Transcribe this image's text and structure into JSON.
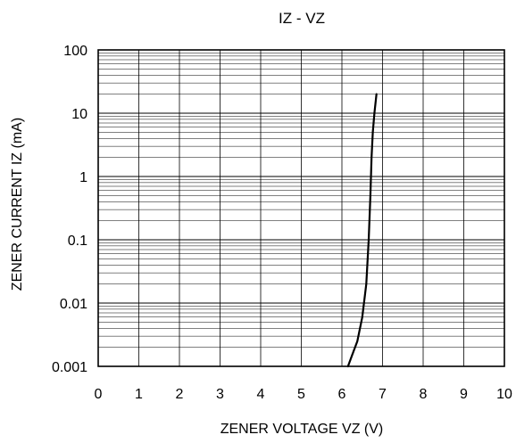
{
  "chart_data": {
    "type": "line",
    "title": "IZ - VZ",
    "xlabel": "ZENER VOLTAGE VZ (V)",
    "ylabel": "ZENER CURRENT  IZ (mA)",
    "x_scale": "linear",
    "y_scale": "log",
    "xlim": [
      0,
      10
    ],
    "ylim": [
      0.001,
      100
    ],
    "grid": true,
    "x_ticks": [
      "0",
      "1",
      "2",
      "3",
      "4",
      "5",
      "6",
      "7",
      "8",
      "9",
      "10"
    ],
    "y_ticks": [
      "100",
      "10",
      "1",
      "0.1",
      "0.01",
      "0.001"
    ],
    "y_tick_values": [
      100,
      10,
      1,
      0.1,
      0.01,
      0.001
    ],
    "series": [
      {
        "color": "#000000",
        "points": [
          {
            "x": 6.15,
            "y": 0.001
          },
          {
            "x": 6.25,
            "y": 0.0015
          },
          {
            "x": 6.38,
            "y": 0.0025
          },
          {
            "x": 6.5,
            "y": 0.006
          },
          {
            "x": 6.6,
            "y": 0.02
          },
          {
            "x": 6.66,
            "y": 0.1
          },
          {
            "x": 6.7,
            "y": 0.5
          },
          {
            "x": 6.73,
            "y": 2
          },
          {
            "x": 6.76,
            "y": 5
          },
          {
            "x": 6.8,
            "y": 10
          },
          {
            "x": 6.85,
            "y": 20
          }
        ]
      }
    ]
  }
}
